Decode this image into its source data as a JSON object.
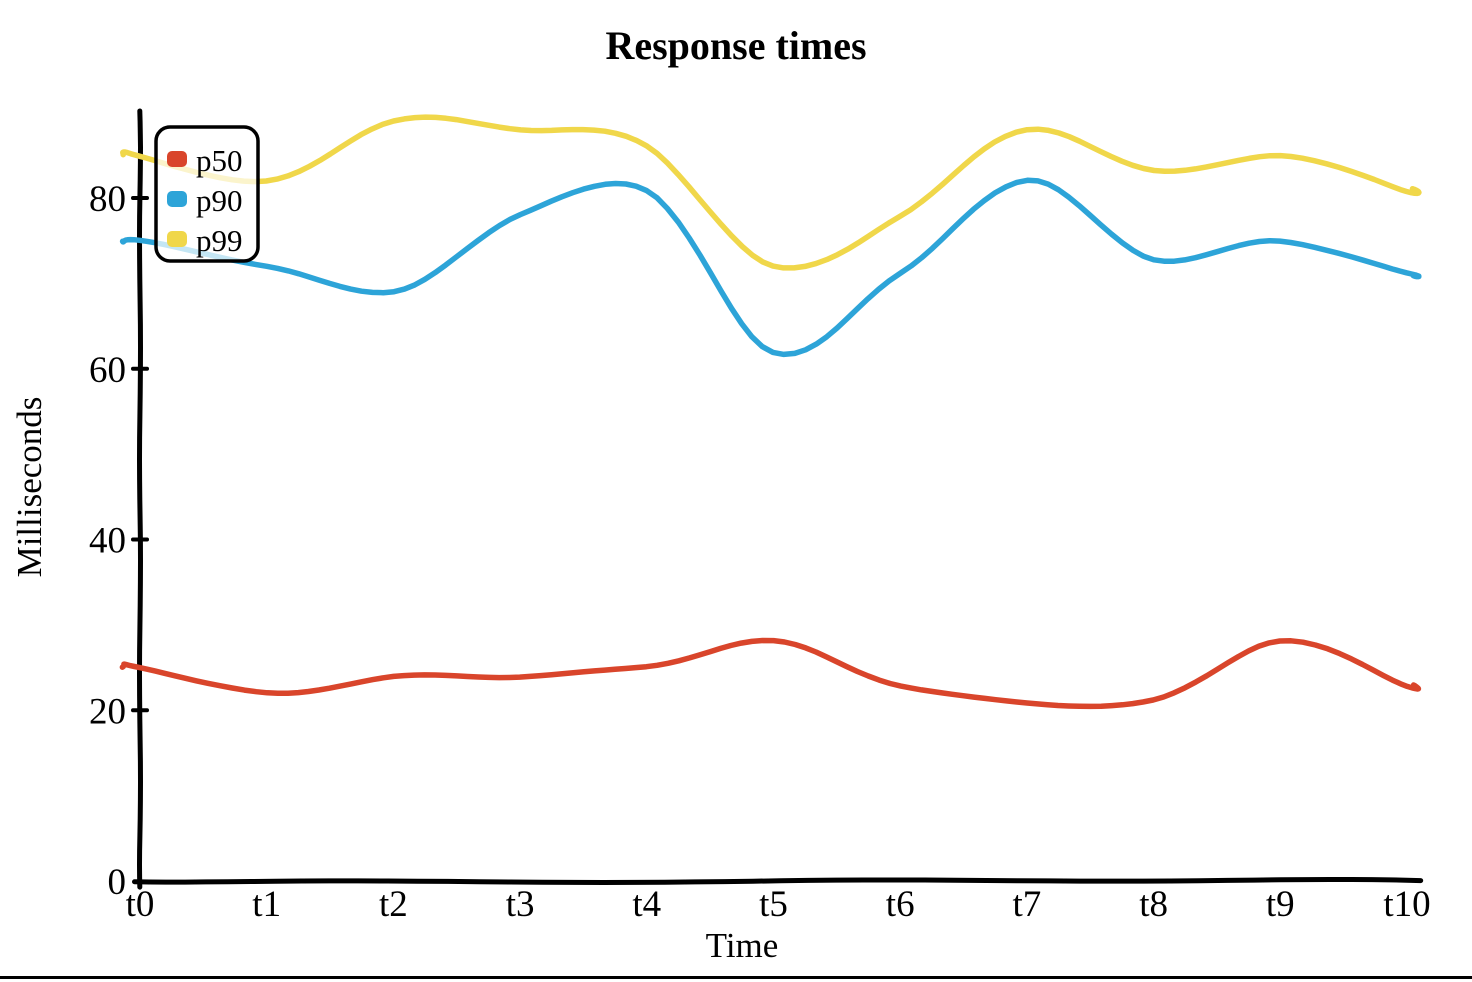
{
  "title": "Response times",
  "axes": {
    "x_label": "Time",
    "y_label": "Milliseconds",
    "x_tick_labels": [
      "t0",
      "t1",
      "t2",
      "t3",
      "t4",
      "t5",
      "t6",
      "t7",
      "t8",
      "t9",
      "t10"
    ],
    "y_tick_labels": [
      "0",
      "20",
      "40",
      "60",
      "80"
    ]
  },
  "legend": {
    "items": [
      {
        "label": "p50",
        "color": "#d9452b"
      },
      {
        "label": "p90",
        "color": "#2da4d8"
      },
      {
        "label": "p99",
        "color": "#f0d74a"
      }
    ],
    "position": "top-left"
  },
  "colors": {
    "p50": "#d9452b",
    "p90": "#2da4d8",
    "p99": "#f0d74a",
    "axis": "#000000",
    "background": "#ffffff"
  },
  "chart_data": {
    "type": "line",
    "style": "hand-drawn-xkcd",
    "title": "Response times",
    "xlabel": "Time",
    "ylabel": "Milliseconds",
    "categories": [
      "t0",
      "t1",
      "t2",
      "t3",
      "t4",
      "t5",
      "t6",
      "t7",
      "t8",
      "t9",
      "t10"
    ],
    "series": [
      {
        "name": "p50",
        "color": "#d9452b",
        "values": [
          25,
          22,
          24,
          24,
          25,
          28,
          23,
          21,
          21,
          28,
          23
        ]
      },
      {
        "name": "p90",
        "color": "#2da4d8",
        "values": [
          75,
          72,
          69,
          78,
          81,
          62,
          71,
          82,
          73,
          75,
          71
        ]
      },
      {
        "name": "p99",
        "color": "#f0d74a",
        "values": [
          85,
          82,
          89,
          88,
          86,
          72,
          78,
          88,
          83,
          85,
          81
        ]
      }
    ],
    "y_ticks": [
      0,
      20,
      40,
      60,
      80
    ],
    "ylim": [
      0,
      93
    ],
    "grid": false,
    "legend_position": "top-left"
  }
}
